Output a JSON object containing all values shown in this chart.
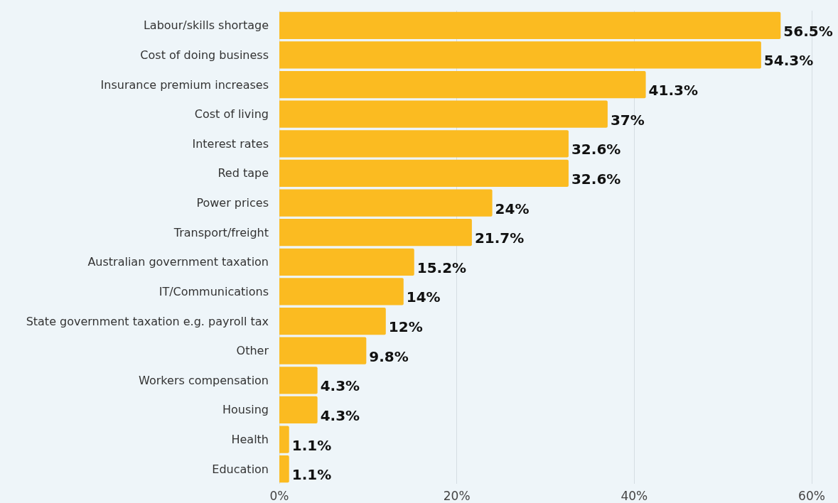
{
  "chart_data": {
    "type": "bar",
    "orientation": "horizontal",
    "categories": [
      "Labour/skills shortage",
      "Cost of doing business",
      "Insurance premium increases",
      "Cost of living",
      "Interest rates",
      "Red tape",
      "Power prices",
      "Transport/freight",
      "Australian government taxation",
      "IT/Communications",
      "State government taxation e.g. payroll tax",
      "Other",
      "Workers compensation",
      "Housing",
      "Health",
      "Education"
    ],
    "values": [
      56.5,
      54.3,
      41.3,
      37,
      32.6,
      32.6,
      24,
      21.7,
      15.2,
      14,
      12,
      9.8,
      4.3,
      4.3,
      1.1,
      1.1
    ],
    "value_labels": [
      "56.5%",
      "54.3%",
      "41.3%",
      "37%",
      "32.6%",
      "32.6%",
      "24%",
      "21.7%",
      "15.2%",
      "14%",
      "12%",
      "9.8%",
      "4.3%",
      "4.3%",
      "1.1%",
      "1.1%"
    ],
    "color": "#fbbb21",
    "xlim": [
      0,
      60
    ],
    "xticks": [
      {
        "value": 0,
        "label": "0%"
      },
      {
        "value": 20,
        "label": "20%"
      },
      {
        "value": 40,
        "label": "40%"
      },
      {
        "value": 60,
        "label": "60%"
      }
    ],
    "grid": "x"
  }
}
